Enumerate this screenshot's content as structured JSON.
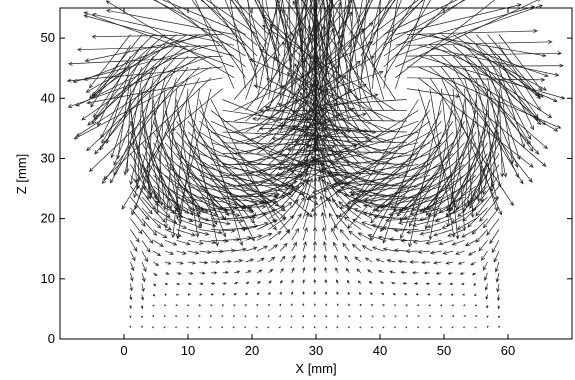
{
  "chart_data": {
    "type": "quiver",
    "title": "",
    "xlabel": "X [mm]",
    "ylabel": "Z [mm]",
    "xlim": [
      -10,
      70
    ],
    "ylim": [
      0,
      55
    ],
    "xticks": [
      0,
      10,
      20,
      30,
      40,
      50,
      60
    ],
    "yticks": [
      0,
      10,
      20,
      30,
      40,
      50
    ],
    "grid": false,
    "legend": "none",
    "field": {
      "x_range": [
        1,
        59
      ],
      "z_range": [
        2,
        52
      ],
      "spacing_mm": 1.8,
      "wall_x": [
        1,
        59
      ],
      "vortex_centers": [
        [
          [
            16,
            41
          ],
          "counter-clockwise"
        ],
        [
          [
            44,
            41
          ],
          "clockwise"
        ]
      ],
      "central_flow": "upward along x = 30 mm",
      "surface_flow": "outward along free surface near z = 45-50 mm",
      "wall_jets": "downward along walls at x = 0 and x = 60 mm"
    }
  }
}
